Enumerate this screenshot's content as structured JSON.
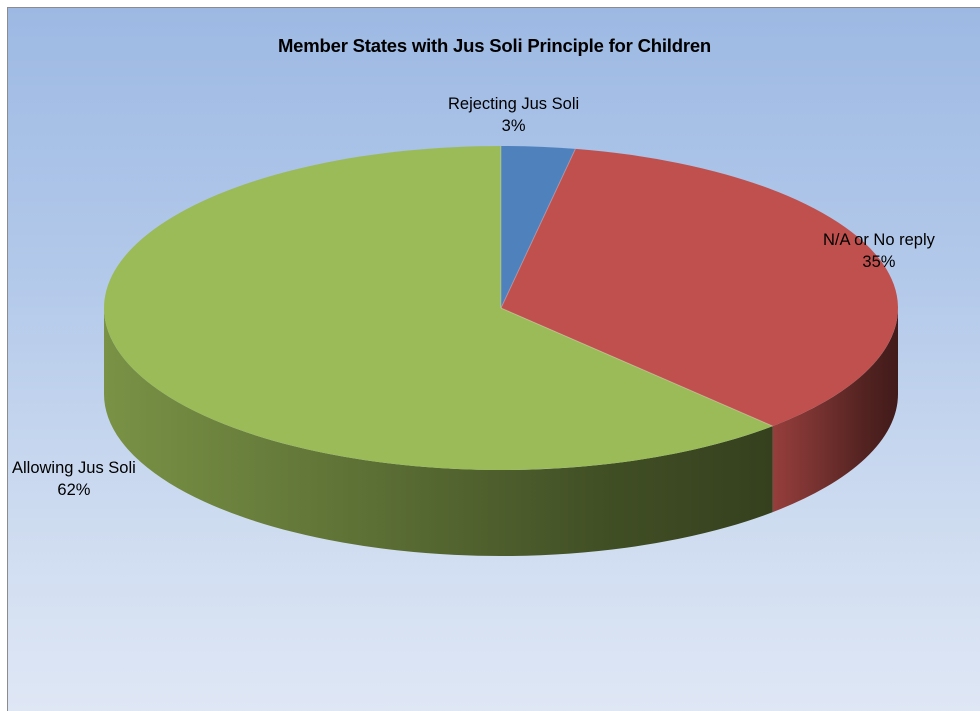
{
  "chart_data": {
    "type": "pie",
    "style": "3d",
    "title": "Member States with Jus Soli Principle for Children",
    "slices": [
      {
        "label": "Rejecting Jus Soli",
        "value": 3,
        "display": "3%",
        "color": "#4f81bd"
      },
      {
        "label": "N/A or No reply",
        "value": 35,
        "display": "35%",
        "color": "#c0504d"
      },
      {
        "label": "Allowing Jus Soli",
        "value": 62,
        "display": "62%",
        "color": "#9bbb59"
      }
    ],
    "legend": "none",
    "data_labels": "category and percentage"
  }
}
